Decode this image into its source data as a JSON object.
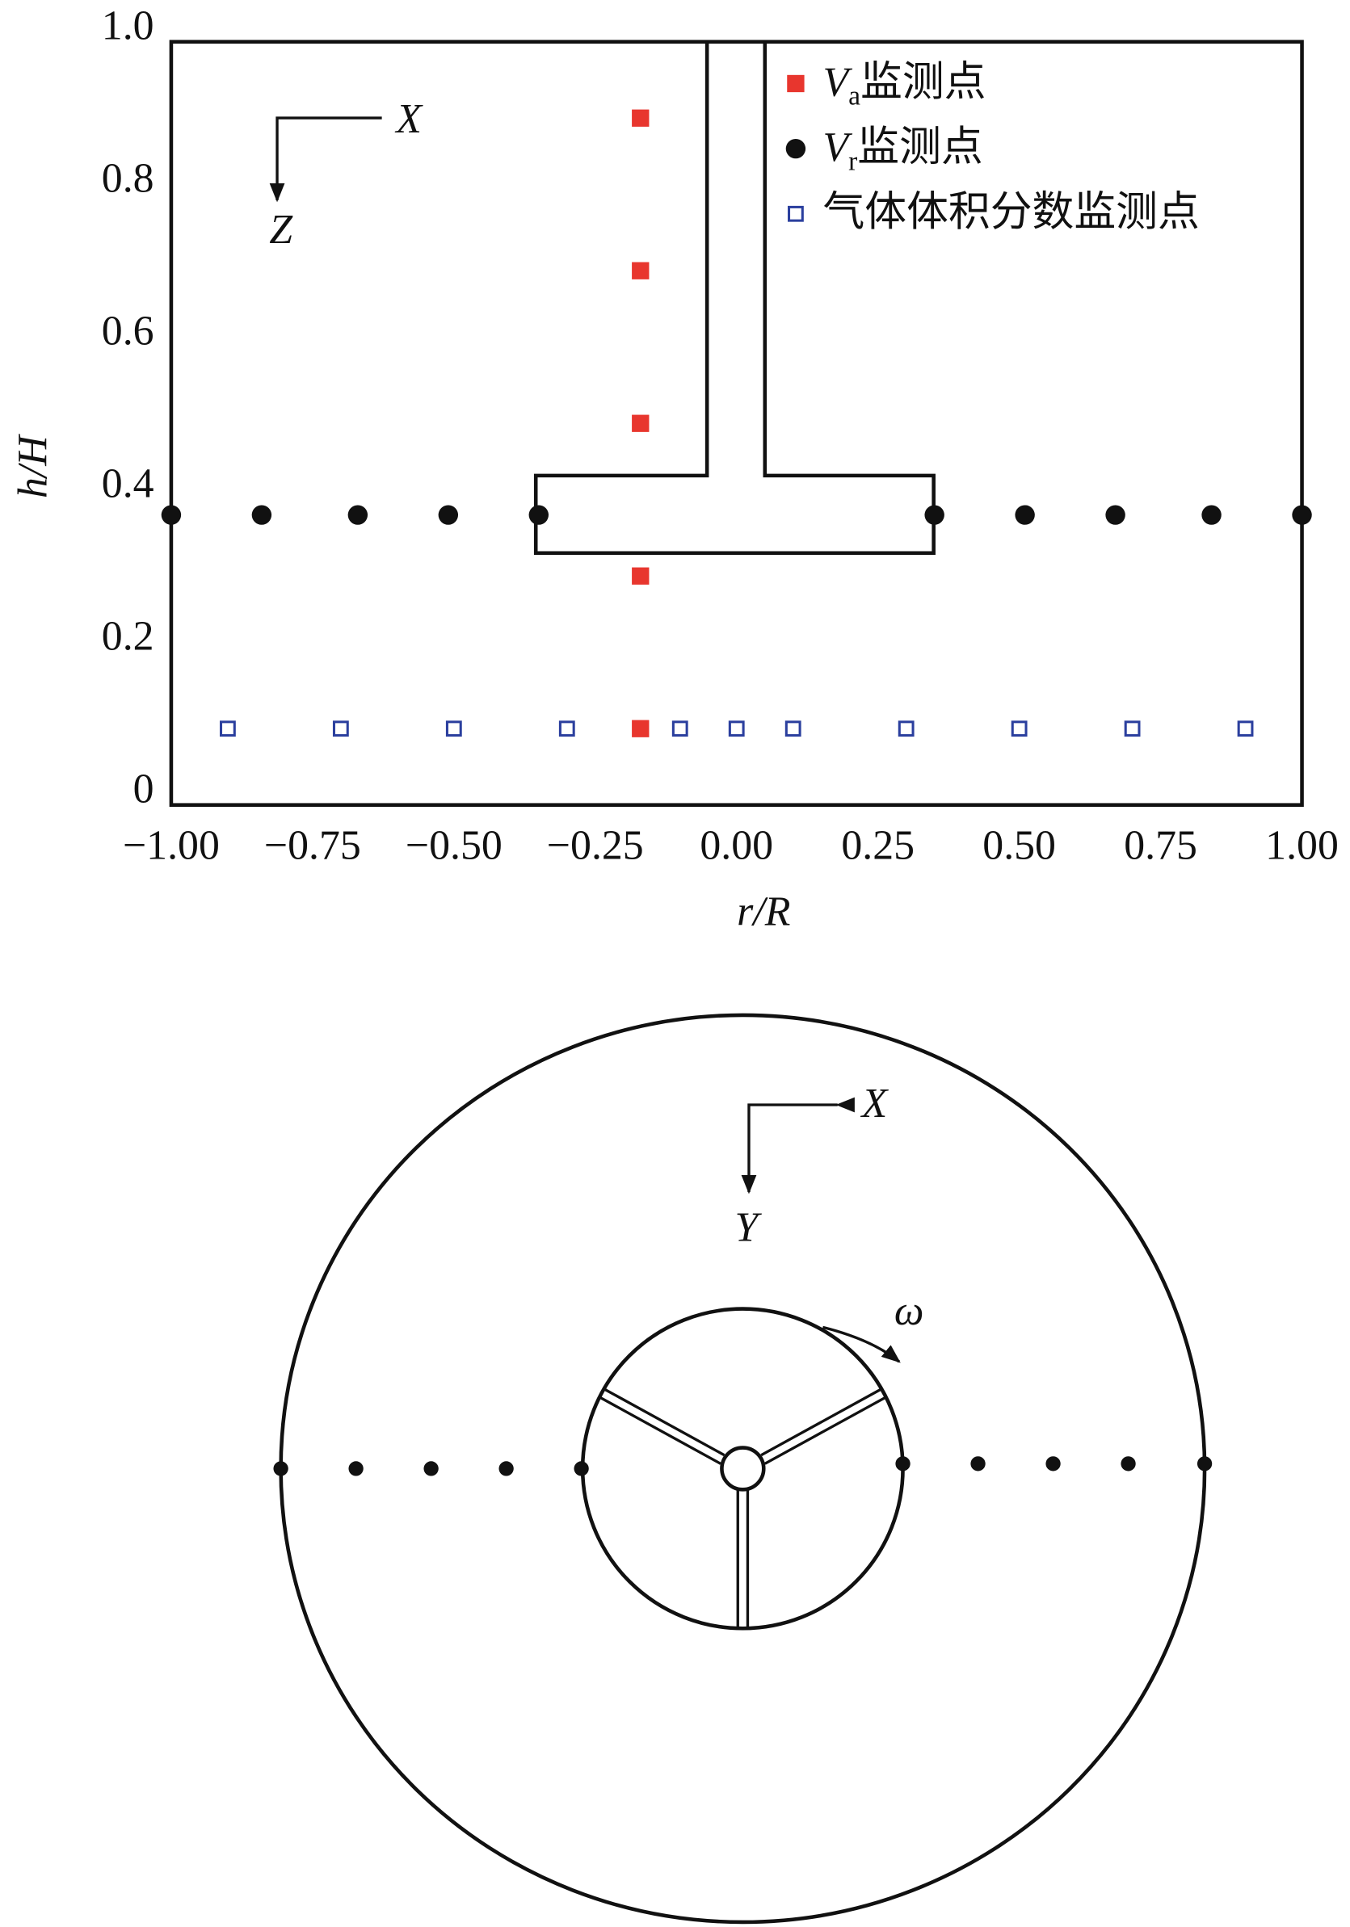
{
  "chart_data": {
    "type": "scatter",
    "xlabel": "r/R",
    "ylabel": "h/H",
    "annotations": [
      "X",
      "Z"
    ],
    "xlim": [
      -1.0,
      1.0
    ],
    "ylim": [
      0,
      1.0
    ],
    "xticks": [
      {
        "value": -1.0,
        "label": "−1.00"
      },
      {
        "value": -0.75,
        "label": "−0.75"
      },
      {
        "value": -0.5,
        "label": "−0.50"
      },
      {
        "value": -0.25,
        "label": "−0.25"
      },
      {
        "value": 0,
        "label": "0.00"
      },
      {
        "value": 0.25,
        "label": "0.25"
      },
      {
        "value": 0.5,
        "label": "0.50"
      },
      {
        "value": 0.75,
        "label": "0.75"
      },
      {
        "value": 1.0,
        "label": "1.00"
      }
    ],
    "yticks": [
      0,
      0.2,
      0.4,
      0.6,
      0.8,
      {
        "value": 1.0,
        "label": "1.0"
      }
    ],
    "grid": false,
    "series": [
      {
        "name": "Va监测点",
        "color": "#e8362e",
        "marker": "square",
        "x": [
          -0.17,
          -0.17,
          -0.17,
          -0.17,
          -0.17
        ],
        "values": [
          0.9,
          0.7,
          0.5,
          0.3,
          0.1
        ]
      },
      {
        "name": "Vr监测点",
        "color": "#111111",
        "marker": "circle",
        "x": [
          -1.0,
          -0.84,
          -0.67,
          -0.51,
          -0.35,
          0.35,
          0.51,
          0.67,
          0.84,
          1.0
        ],
        "values": [
          0.38,
          0.38,
          0.38,
          0.38,
          0.38,
          0.38,
          0.38,
          0.38,
          0.38,
          0.38
        ]
      },
      {
        "name": "气体体积分数监测点",
        "color": "#2b3f9e",
        "marker": "open-square",
        "x": [
          -0.9,
          -0.7,
          -0.5,
          -0.3,
          -0.1,
          0,
          0.1,
          0.3,
          0.5,
          0.7,
          0.9
        ],
        "values": [
          0.1,
          0.1,
          0.1,
          0.1,
          0.1,
          0.1,
          0.1,
          0.1,
          0.1,
          0.1,
          0.1
        ]
      }
    ]
  },
  "diagram": {
    "x_label": "X",
    "y_label": "Y",
    "omega_label": "ω"
  }
}
